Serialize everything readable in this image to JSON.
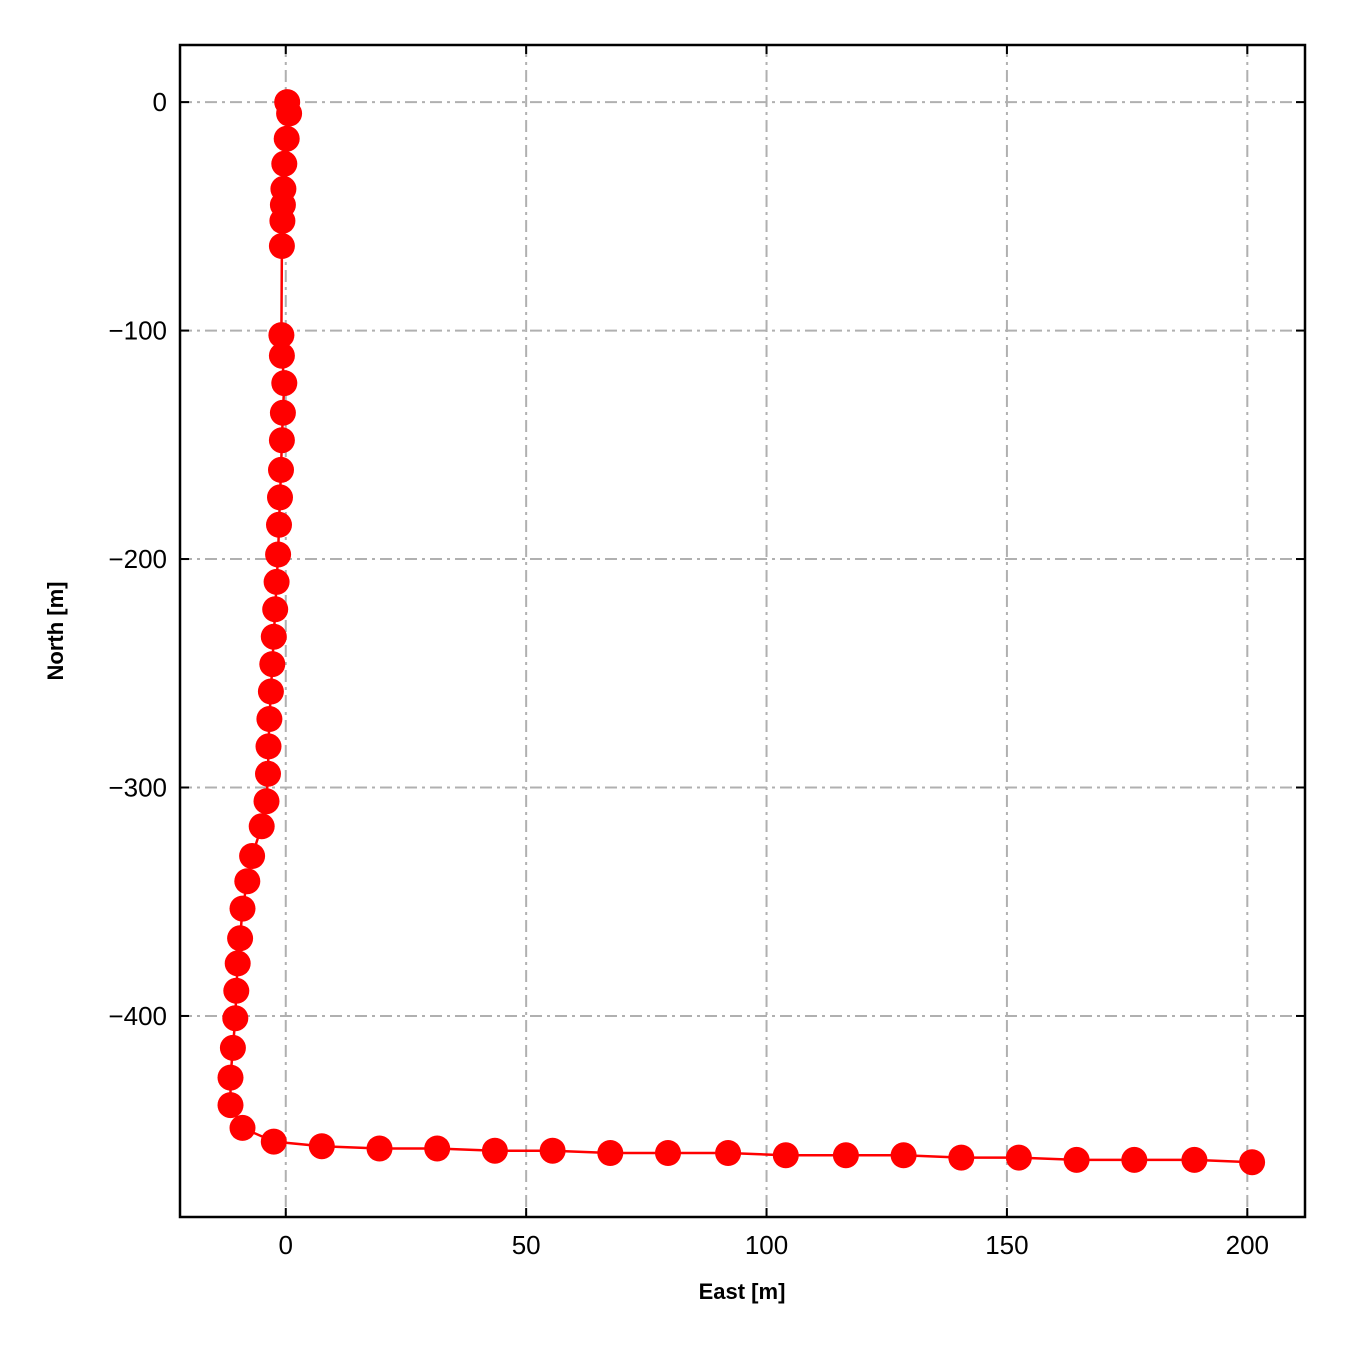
{
  "chart_data": {
    "type": "line",
    "title": "",
    "xlabel": "East [m]",
    "ylabel": "North [m]",
    "xlim": [
      -22,
      212
    ],
    "ylim": [
      -488,
      25
    ],
    "xticks": [
      0,
      50,
      100,
      150,
      200
    ],
    "yticks": [
      0,
      -100,
      -200,
      -300,
      -400
    ],
    "xtick_labels": [
      "0",
      "50",
      "100",
      "150",
      "200"
    ],
    "ytick_labels": [
      "0",
      "−100",
      "−200",
      "−300",
      "−400"
    ],
    "grid": true,
    "legend": null,
    "colors": {
      "series": "#ff0000",
      "grid": "#b0b0b0",
      "frame": "#000000"
    },
    "series": [
      {
        "marker": "circle",
        "x": [
          0.3,
          0.7,
          0.2,
          -0.3,
          -0.5,
          -0.6,
          -0.7,
          -0.8,
          -0.9,
          -0.8,
          -0.3,
          -0.6,
          -0.8,
          -1.0,
          -1.2,
          -1.4,
          -1.6,
          -1.9,
          -2.2,
          -2.5,
          -2.8,
          -3.1,
          -3.4,
          -3.6,
          -3.7,
          -4.0,
          -5.0,
          -7.0,
          -8.0,
          -9.0,
          -9.5,
          -10.0,
          -10.3,
          -10.5,
          -11.0,
          -11.5,
          -11.5,
          -9.0,
          -2.5,
          7.5,
          19.5,
          31.5,
          43.5,
          55.5,
          67.5,
          79.5,
          92.0,
          104.0,
          116.5,
          128.5,
          140.5,
          152.5,
          164.5,
          176.5,
          189.0,
          201.0
        ],
        "y": [
          0,
          -5,
          -16,
          -27,
          -38,
          -45,
          -52,
          -63,
          -102,
          -111,
          -123,
          -136,
          -148,
          -161,
          -173,
          -185,
          -198,
          -210,
          -222,
          -234,
          -246,
          -258,
          -270,
          -282,
          -294,
          -306,
          -317,
          -330,
          -341,
          -353,
          -366,
          -377,
          -389,
          -401,
          -414,
          -427,
          -439,
          -449,
          -455,
          -457,
          -458,
          -458,
          -459,
          -459,
          -460,
          -460,
          -460,
          -461,
          -461,
          -461,
          -462,
          -462,
          -463,
          -463,
          -463,
          -464
        ]
      }
    ]
  }
}
